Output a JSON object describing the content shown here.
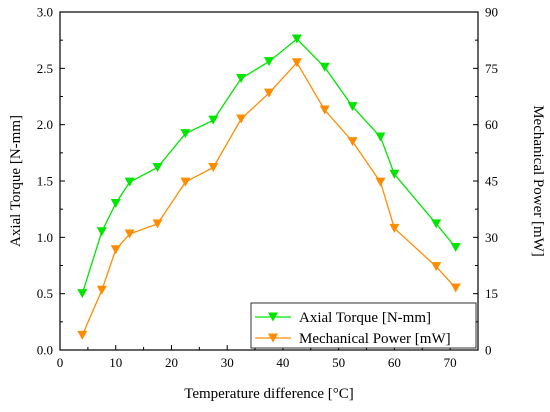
{
  "chart_data": {
    "type": "line",
    "xlabel": "Temperature difference [°C]",
    "ylabel": "Axial Torque [N-mm]",
    "y2label": "Mechanical Power [mW]",
    "xlim": [
      0,
      75
    ],
    "ylim": [
      0.0,
      3.0
    ],
    "y2lim": [
      0,
      90
    ],
    "xticks": [
      "0",
      "10",
      "20",
      "30",
      "40",
      "50",
      "60",
      "70"
    ],
    "yticks": [
      "0.0",
      "0.5",
      "1.0",
      "1.5",
      "2.0",
      "2.5",
      "3.0"
    ],
    "y2ticks": [
      "0",
      "15",
      "30",
      "45",
      "60",
      "75",
      "90"
    ],
    "grid": false,
    "legend_position": "bottom-right",
    "series": [
      {
        "name": "Axial Torque [N-mm]",
        "axis": "left",
        "color": "#00e600",
        "marker": "down-triangle",
        "x": [
          4,
          7.5,
          10,
          12.5,
          17.5,
          22.5,
          27.5,
          32.5,
          37.5,
          42.5,
          47.5,
          52.5,
          57.5,
          60,
          67.5,
          71
        ],
        "y": [
          0.5,
          1.05,
          1.3,
          1.49,
          1.62,
          1.92,
          2.04,
          2.41,
          2.56,
          2.76,
          2.51,
          2.16,
          1.89,
          1.56,
          1.12,
          0.91
        ]
      },
      {
        "name": "Mechanical Power [mW]",
        "axis": "right",
        "color": "#ff8c00",
        "marker": "down-triangle",
        "x": [
          4,
          7.5,
          10,
          12.5,
          17.5,
          22.5,
          27.5,
          32.5,
          37.5,
          42.5,
          47.5,
          52.5,
          57.5,
          60,
          67.5,
          71
        ],
        "y": [
          3.9,
          15.9,
          26.7,
          30.9,
          33.6,
          44.7,
          48.6,
          61.5,
          68.4,
          76.5,
          63.9,
          55.5,
          44.7,
          32.4,
          22.2,
          16.5
        ]
      }
    ]
  }
}
